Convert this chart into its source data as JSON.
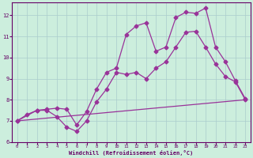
{
  "xlabel": "Windchill (Refroidissement éolien,°C)",
  "background_color": "#cceedd",
  "grid_color": "#aacccc",
  "line_color": "#993399",
  "xlim": [
    -0.5,
    23.5
  ],
  "ylim": [
    6.0,
    12.6
  ],
  "yticks": [
    6,
    7,
    8,
    9,
    10,
    11,
    12
  ],
  "xticks": [
    0,
    1,
    2,
    3,
    4,
    5,
    6,
    7,
    8,
    9,
    10,
    11,
    12,
    13,
    14,
    15,
    16,
    17,
    18,
    19,
    20,
    21,
    22,
    23
  ],
  "line1_x": [
    0,
    1,
    2,
    3,
    4,
    5,
    6,
    7,
    8,
    9,
    10,
    11,
    12,
    13,
    14,
    15,
    16,
    17,
    18,
    19,
    20,
    21,
    22,
    23
  ],
  "line1_y": [
    7.0,
    7.3,
    7.5,
    7.55,
    7.6,
    7.55,
    6.8,
    7.45,
    8.5,
    9.3,
    9.5,
    11.1,
    11.5,
    11.65,
    10.3,
    10.5,
    11.9,
    12.15,
    12.1,
    12.35,
    10.5,
    9.8,
    8.9,
    8.05
  ],
  "line2_x": [
    0,
    2,
    3,
    4,
    5,
    6,
    7,
    8,
    9,
    10,
    11,
    12,
    13,
    14,
    15,
    16,
    17,
    18,
    19,
    20,
    21,
    22,
    23
  ],
  "line2_y": [
    7.0,
    7.5,
    7.5,
    7.2,
    6.7,
    6.5,
    7.0,
    7.9,
    8.5,
    9.3,
    9.2,
    9.3,
    9.0,
    9.5,
    9.8,
    10.5,
    11.2,
    11.25,
    10.5,
    9.7,
    9.1,
    8.85,
    8.0
  ],
  "line3_x": [
    0,
    23
  ],
  "line3_y": [
    7.0,
    8.0
  ]
}
